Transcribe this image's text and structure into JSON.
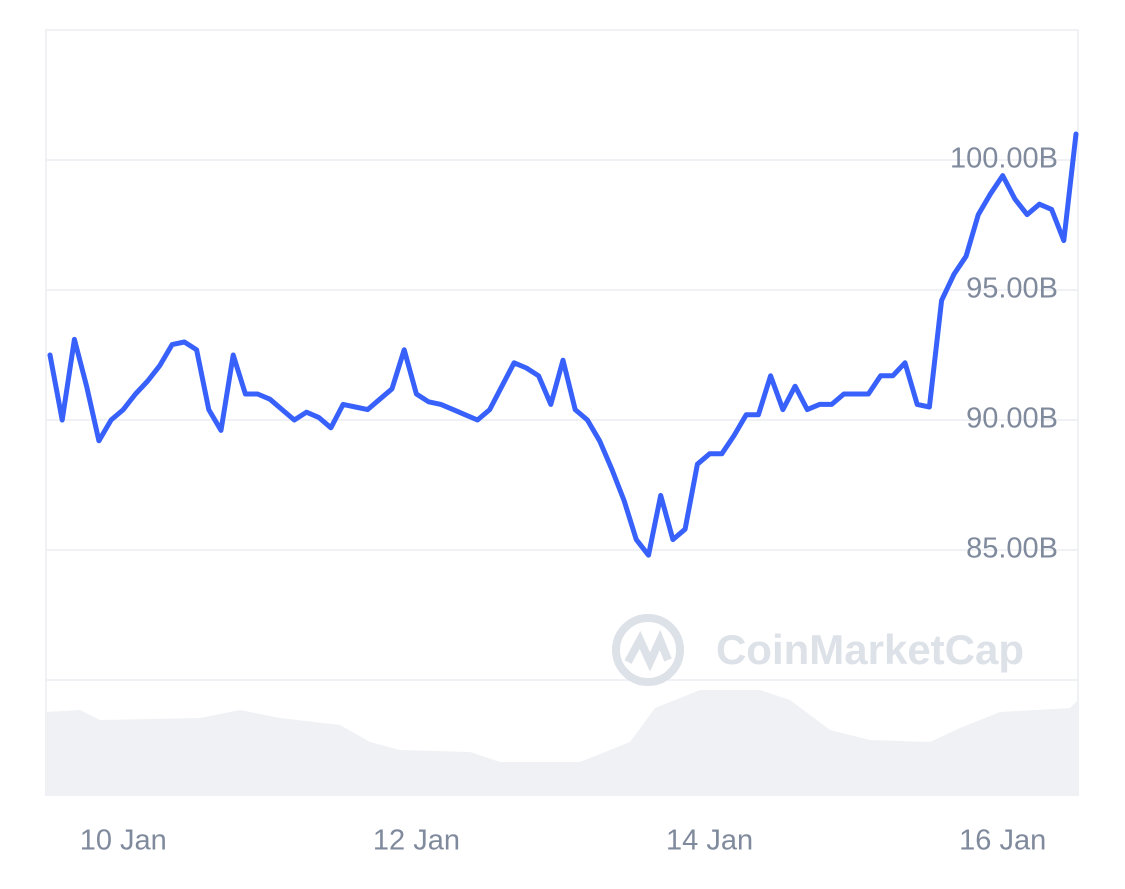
{
  "chart_data": {
    "type": "line",
    "watermark": "CoinMarketCap",
    "categories": [
      null,
      null,
      null,
      null,
      null,
      null,
      "10 Jan",
      null,
      null,
      null,
      null,
      null,
      null,
      null,
      null,
      null,
      null,
      null,
      null,
      null,
      null,
      null,
      null,
      null,
      null,
      null,
      null,
      null,
      null,
      null,
      "12 Jan",
      null,
      null,
      null,
      null,
      null,
      null,
      null,
      null,
      null,
      null,
      null,
      null,
      null,
      null,
      null,
      null,
      null,
      null,
      null,
      null,
      null,
      null,
      null,
      "14 Jan",
      null,
      null,
      null,
      null,
      null,
      null,
      null,
      null,
      null,
      null,
      null,
      null,
      null,
      null,
      null,
      null,
      null,
      null,
      null,
      null,
      null,
      null,
      null,
      "16 Jan",
      null,
      null,
      null,
      null,
      null,
      null
    ],
    "series": [
      {
        "color": "#3861fb",
        "values": [
          92.5,
          90.0,
          93.1,
          91.3,
          89.2,
          90.0,
          90.4,
          91.0,
          91.5,
          92.1,
          92.9,
          93.0,
          92.7,
          90.4,
          89.6,
          92.5,
          91.0,
          91.0,
          90.8,
          90.4,
          90.0,
          90.3,
          90.1,
          89.7,
          90.6,
          90.5,
          90.4,
          90.8,
          91.2,
          92.7,
          91.0,
          90.7,
          90.6,
          90.4,
          90.2,
          90.0,
          90.4,
          91.3,
          92.2,
          92.0,
          91.7,
          90.6,
          92.3,
          90.4,
          90.0,
          89.2,
          88.1,
          86.9,
          85.4,
          84.8,
          87.1,
          85.4,
          85.8,
          88.3,
          88.7,
          88.7,
          89.4,
          90.2,
          90.2,
          91.7,
          90.4,
          91.3,
          90.4,
          90.6,
          90.6,
          91.0,
          91.0,
          91.0,
          91.7,
          91.7,
          92.2,
          90.6,
          90.5,
          94.6,
          95.6,
          96.3,
          97.9,
          98.7,
          99.4,
          98.5,
          97.9,
          98.3,
          98.1,
          96.9,
          101.0
        ]
      }
    ],
    "ylim": [
      80,
      105
    ],
    "yticks": [
      {
        "value": 85,
        "label": "85.00B"
      },
      {
        "value": 90,
        "label": "90.00B"
      },
      {
        "value": 95,
        "label": "95.00B"
      },
      {
        "value": 100,
        "label": "100.00B"
      }
    ],
    "grid": true
  }
}
